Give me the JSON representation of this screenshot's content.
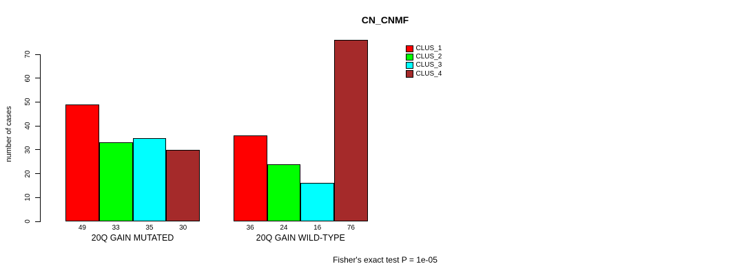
{
  "chart_data": {
    "type": "bar",
    "title": "CN_CNMF",
    "ylabel": "number of cases",
    "xlabel": "",
    "categories": [
      "20Q GAIN MUTATED",
      "20Q GAIN WILD-TYPE"
    ],
    "series": [
      {
        "name": "CLUS_1",
        "color": "#ff0000",
        "values": [
          49,
          36
        ]
      },
      {
        "name": "CLUS_2",
        "color": "#00ff00",
        "values": [
          33,
          24
        ]
      },
      {
        "name": "CLUS_3",
        "color": "#00ffff",
        "values": [
          35,
          16
        ]
      },
      {
        "name": "CLUS_4",
        "color": "#a52a2a",
        "values": [
          30,
          76
        ]
      }
    ],
    "yticks": [
      0,
      10,
      20,
      30,
      40,
      50,
      60,
      70
    ],
    "ylim": [
      0,
      76
    ],
    "grid": false,
    "legend_position": "top-right",
    "bar_value_labels": true,
    "annotation": "Fisher's exact test P = 1e-05",
    "axis_color": "#000000",
    "background_color": "#ffffff"
  }
}
